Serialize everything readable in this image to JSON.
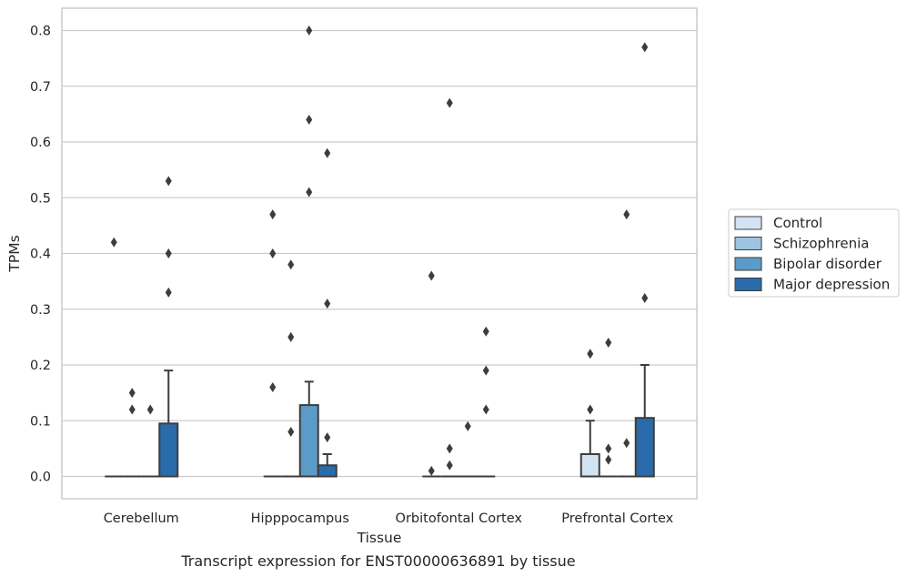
{
  "caption": "Transcript expression for ENST00000636891 by tissue",
  "chart_data": {
    "type": "box",
    "xlabel": "Tissue",
    "ylabel": "TPMs",
    "ylim": [
      -0.04,
      0.84
    ],
    "yticks": [
      0.0,
      0.1,
      0.2,
      0.3,
      0.4,
      0.5,
      0.6,
      0.7,
      0.8
    ],
    "ytick_labels": [
      "0.0",
      "0.1",
      "0.2",
      "0.3",
      "0.4",
      "0.5",
      "0.6",
      "0.7",
      "0.8"
    ],
    "grid": true,
    "legend_position": "right",
    "categories": [
      "Cerebellum",
      "Hipppocampus",
      "Orbitofontal Cortex",
      "Prefrontal Cortex"
    ],
    "series": [
      {
        "name": "Control",
        "color": "#d4e3f3",
        "boxes": [
          {
            "q1": 0,
            "median": 0,
            "q3": 0,
            "whisker_low": 0,
            "whisker_high": 0,
            "outliers": [
              0.42
            ]
          },
          {
            "q1": 0,
            "median": 0,
            "q3": 0,
            "whisker_low": 0,
            "whisker_high": 0,
            "outliers": [
              0.47,
              0.4,
              0.16
            ]
          },
          {
            "q1": 0,
            "median": 0,
            "q3": 0,
            "whisker_low": 0,
            "whisker_high": 0,
            "outliers": [
              0.36,
              0.01
            ]
          },
          {
            "q1": 0,
            "median": 0,
            "q3": 0.04,
            "whisker_low": 0,
            "whisker_high": 0.1,
            "outliers": [
              0.22,
              0.12
            ]
          }
        ]
      },
      {
        "name": "Schizophrenia",
        "color": "#9dc5df",
        "boxes": [
          {
            "q1": 0,
            "median": 0,
            "q3": 0,
            "whisker_low": 0,
            "whisker_high": 0,
            "outliers": [
              0.15,
              0.12
            ]
          },
          {
            "q1": 0,
            "median": 0,
            "q3": 0,
            "whisker_low": 0,
            "whisker_high": 0,
            "outliers": [
              0.38,
              0.25,
              0.08
            ]
          },
          {
            "q1": 0,
            "median": 0,
            "q3": 0,
            "whisker_low": 0,
            "whisker_high": 0,
            "outliers": [
              0.67,
              0.05,
              0.02
            ]
          },
          {
            "q1": 0,
            "median": 0,
            "q3": 0,
            "whisker_low": 0,
            "whisker_high": 0,
            "outliers": [
              0.24,
              0.05,
              0.03
            ]
          }
        ]
      },
      {
        "name": "Bipolar disorder",
        "color": "#5a9bc8",
        "boxes": [
          {
            "q1": 0,
            "median": 0,
            "q3": 0,
            "whisker_low": 0,
            "whisker_high": 0,
            "outliers": [
              0.12
            ]
          },
          {
            "q1": 0,
            "median": 0,
            "q3": 0.128,
            "whisker_low": 0,
            "whisker_high": 0.17,
            "outliers": [
              0.8,
              0.64,
              0.51
            ]
          },
          {
            "q1": 0,
            "median": 0,
            "q3": 0,
            "whisker_low": 0,
            "whisker_high": 0,
            "outliers": [
              0.09
            ]
          },
          {
            "q1": 0,
            "median": 0,
            "q3": 0,
            "whisker_low": 0,
            "whisker_high": 0,
            "outliers": [
              0.47,
              0.06
            ]
          }
        ]
      },
      {
        "name": "Major depression",
        "color": "#2a6bab",
        "boxes": [
          {
            "q1": 0,
            "median": 0,
            "q3": 0.095,
            "whisker_low": 0,
            "whisker_high": 0.19,
            "outliers": [
              0.53,
              0.4,
              0.33
            ]
          },
          {
            "q1": 0,
            "median": 0,
            "q3": 0.02,
            "whisker_low": 0,
            "whisker_high": 0.04,
            "outliers": [
              0.58,
              0.31,
              0.07
            ]
          },
          {
            "q1": 0,
            "median": 0,
            "q3": 0,
            "whisker_low": 0,
            "whisker_high": 0,
            "outliers": [
              0.26,
              0.19,
              0.12
            ]
          },
          {
            "q1": 0,
            "median": 0,
            "q3": 0.105,
            "whisker_low": 0,
            "whisker_high": 0.2,
            "outliers": [
              0.77,
              0.32
            ]
          }
        ]
      }
    ]
  }
}
